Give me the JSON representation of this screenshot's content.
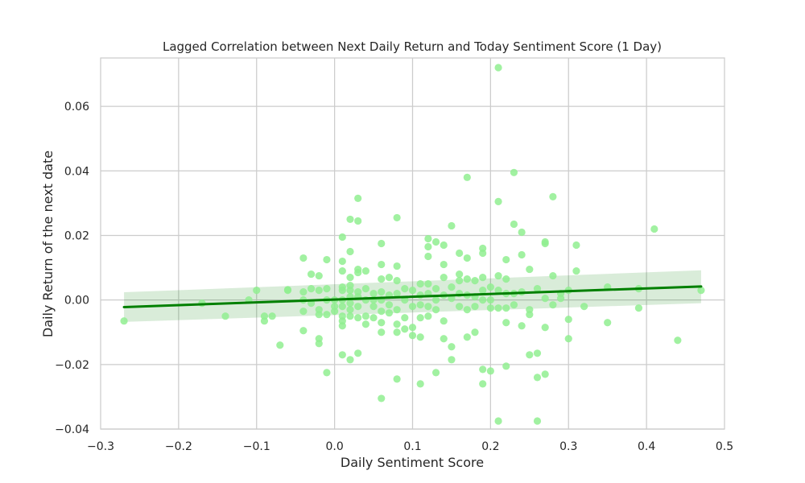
{
  "chart_data": {
    "type": "scatter",
    "title": "Lagged Correlation between Next Daily Return and Today Sentiment Score (1 Day)",
    "xlabel": "Daily Sentiment Score",
    "ylabel": "Daily Return of the next date",
    "xlim": [
      -0.3,
      0.5
    ],
    "ylim": [
      -0.04,
      0.075
    ],
    "x_ticks": [
      -0.3,
      -0.2,
      -0.1,
      0.0,
      0.1,
      0.2,
      0.3,
      0.4,
      0.5
    ],
    "x_tick_labels": [
      "−0.3",
      "−0.2",
      "−0.1",
      "0.0",
      "0.1",
      "0.2",
      "0.3",
      "0.4",
      "0.5"
    ],
    "y_ticks": [
      -0.04,
      -0.02,
      0.0,
      0.02,
      0.04,
      0.06
    ],
    "y_tick_labels": [
      "−0.04",
      "−0.02",
      "0.00",
      "0.02",
      "0.04",
      "0.06"
    ],
    "grid": true,
    "point_color": "#90ee90",
    "line_color": "#008000",
    "band_color": "#008000",
    "regression": {
      "x": [
        -0.27,
        0.47
      ],
      "y": [
        -0.0022,
        0.0042
      ],
      "ci_start": [
        -0.0068,
        0.0024
      ],
      "ci_end": [
        -0.001,
        0.0092
      ]
    },
    "points": [
      [
        -0.27,
        -0.0065
      ],
      [
        -0.17,
        -0.001
      ],
      [
        -0.14,
        -0.005
      ],
      [
        -0.11,
        0.0
      ],
      [
        -0.1,
        0.003
      ],
      [
        -0.09,
        -0.005
      ],
      [
        -0.09,
        -0.0065
      ],
      [
        -0.08,
        -0.005
      ],
      [
        -0.07,
        -0.014
      ],
      [
        -0.06,
        0.003
      ],
      [
        -0.06,
        0.0032
      ],
      [
        -0.04,
        0.013
      ],
      [
        -0.04,
        0.0025
      ],
      [
        -0.04,
        0.0
      ],
      [
        -0.04,
        -0.0035
      ],
      [
        -0.04,
        -0.0095
      ],
      [
        -0.03,
        0.008
      ],
      [
        -0.03,
        0.0035
      ],
      [
        -0.03,
        -0.001
      ],
      [
        -0.02,
        0.0075
      ],
      [
        -0.02,
        0.003
      ],
      [
        -0.02,
        -0.003
      ],
      [
        -0.02,
        -0.0045
      ],
      [
        -0.02,
        -0.012
      ],
      [
        -0.02,
        -0.0135
      ],
      [
        -0.01,
        0.0125
      ],
      [
        -0.01,
        0.0035
      ],
      [
        -0.01,
        0.0
      ],
      [
        -0.01,
        -0.0045
      ],
      [
        -0.01,
        -0.0225
      ],
      [
        0.0,
        0.0
      ],
      [
        0.0,
        -0.002
      ],
      [
        0.0,
        -0.0035
      ],
      [
        0.01,
        0.0195
      ],
      [
        0.01,
        0.012
      ],
      [
        0.01,
        0.009
      ],
      [
        0.01,
        0.004
      ],
      [
        0.01,
        0.003
      ],
      [
        0.01,
        0.0
      ],
      [
        0.01,
        -0.002
      ],
      [
        0.01,
        -0.005
      ],
      [
        0.01,
        -0.0065
      ],
      [
        0.01,
        -0.008
      ],
      [
        0.01,
        -0.017
      ],
      [
        0.02,
        0.025
      ],
      [
        0.02,
        0.015
      ],
      [
        0.02,
        0.007
      ],
      [
        0.02,
        0.0045
      ],
      [
        0.02,
        0.003
      ],
      [
        0.02,
        0.001
      ],
      [
        0.02,
        -0.001
      ],
      [
        0.02,
        -0.003
      ],
      [
        0.02,
        -0.005
      ],
      [
        0.02,
        -0.0185
      ],
      [
        0.03,
        0.0315
      ],
      [
        0.03,
        0.0245
      ],
      [
        0.03,
        0.0095
      ],
      [
        0.03,
        0.0085
      ],
      [
        0.03,
        0.0025
      ],
      [
        0.03,
        0.001
      ],
      [
        0.03,
        -0.002
      ],
      [
        0.03,
        -0.0055
      ],
      [
        0.03,
        -0.0165
      ],
      [
        0.04,
        0.009
      ],
      [
        0.04,
        0.0035
      ],
      [
        0.04,
        0.0
      ],
      [
        0.04,
        -0.005
      ],
      [
        0.04,
        -0.0075
      ],
      [
        0.05,
        0.002
      ],
      [
        0.05,
        0.0
      ],
      [
        0.05,
        -0.002
      ],
      [
        0.05,
        -0.0055
      ],
      [
        0.06,
        0.0175
      ],
      [
        0.06,
        0.011
      ],
      [
        0.06,
        0.0065
      ],
      [
        0.06,
        0.0025
      ],
      [
        0.06,
        0.0
      ],
      [
        0.06,
        -0.0035
      ],
      [
        0.06,
        -0.007
      ],
      [
        0.06,
        -0.01
      ],
      [
        0.06,
        -0.0305
      ],
      [
        0.07,
        0.007
      ],
      [
        0.07,
        0.0015
      ],
      [
        0.07,
        -0.0015
      ],
      [
        0.07,
        -0.004
      ],
      [
        0.08,
        0.0255
      ],
      [
        0.08,
        0.0105
      ],
      [
        0.08,
        0.006
      ],
      [
        0.08,
        0.002
      ],
      [
        0.08,
        -0.003
      ],
      [
        0.08,
        -0.0075
      ],
      [
        0.08,
        -0.01
      ],
      [
        0.08,
        -0.0245
      ],
      [
        0.09,
        0.0035
      ],
      [
        0.09,
        0.0
      ],
      [
        0.09,
        -0.0055
      ],
      [
        0.09,
        -0.009
      ],
      [
        0.1,
        0.003
      ],
      [
        0.1,
        -0.002
      ],
      [
        0.1,
        -0.0085
      ],
      [
        0.1,
        -0.011
      ],
      [
        0.11,
        0.005
      ],
      [
        0.11,
        0.0015
      ],
      [
        0.11,
        -0.0015
      ],
      [
        0.11,
        -0.0055
      ],
      [
        0.11,
        -0.0115
      ],
      [
        0.11,
        -0.026
      ],
      [
        0.12,
        0.019
      ],
      [
        0.12,
        0.0165
      ],
      [
        0.12,
        0.0135
      ],
      [
        0.12,
        0.005
      ],
      [
        0.12,
        0.002
      ],
      [
        0.12,
        -0.002
      ],
      [
        0.12,
        -0.005
      ],
      [
        0.13,
        0.018
      ],
      [
        0.13,
        0.0035
      ],
      [
        0.13,
        0.0
      ],
      [
        0.13,
        -0.003
      ],
      [
        0.13,
        -0.0225
      ],
      [
        0.14,
        0.017
      ],
      [
        0.14,
        0.011
      ],
      [
        0.14,
        0.007
      ],
      [
        0.14,
        0.0015
      ],
      [
        0.14,
        -0.0065
      ],
      [
        0.14,
        -0.012
      ],
      [
        0.15,
        0.023
      ],
      [
        0.15,
        0.004
      ],
      [
        0.15,
        0.0005
      ],
      [
        0.15,
        -0.0145
      ],
      [
        0.15,
        -0.0185
      ],
      [
        0.16,
        0.0145
      ],
      [
        0.16,
        0.008
      ],
      [
        0.16,
        0.006
      ],
      [
        0.16,
        0.002
      ],
      [
        0.16,
        -0.002
      ],
      [
        0.17,
        0.038
      ],
      [
        0.17,
        0.013
      ],
      [
        0.17,
        0.0065
      ],
      [
        0.17,
        0.0015
      ],
      [
        0.17,
        -0.003
      ],
      [
        0.17,
        -0.0115
      ],
      [
        0.18,
        0.006
      ],
      [
        0.18,
        0.001
      ],
      [
        0.18,
        -0.002
      ],
      [
        0.18,
        -0.01
      ],
      [
        0.19,
        0.016
      ],
      [
        0.19,
        0.0145
      ],
      [
        0.19,
        0.007
      ],
      [
        0.19,
        0.003
      ],
      [
        0.19,
        0.0
      ],
      [
        0.19,
        -0.0215
      ],
      [
        0.19,
        -0.026
      ],
      [
        0.2,
        0.004
      ],
      [
        0.2,
        0.0
      ],
      [
        0.2,
        -0.0025
      ],
      [
        0.2,
        -0.022
      ],
      [
        0.21,
        0.072
      ],
      [
        0.21,
        0.0305
      ],
      [
        0.21,
        0.0075
      ],
      [
        0.21,
        0.003
      ],
      [
        0.21,
        -0.0025
      ],
      [
        0.21,
        -0.0375
      ],
      [
        0.22,
        0.0125
      ],
      [
        0.22,
        0.0065
      ],
      [
        0.22,
        0.002
      ],
      [
        0.22,
        -0.0025
      ],
      [
        0.22,
        -0.007
      ],
      [
        0.22,
        -0.0205
      ],
      [
        0.23,
        0.0395
      ],
      [
        0.23,
        0.0235
      ],
      [
        0.23,
        0.002
      ],
      [
        0.23,
        -0.0015
      ],
      [
        0.24,
        0.021
      ],
      [
        0.24,
        0.014
      ],
      [
        0.24,
        0.0025
      ],
      [
        0.24,
        -0.008
      ],
      [
        0.25,
        0.0095
      ],
      [
        0.25,
        -0.003
      ],
      [
        0.25,
        -0.0045
      ],
      [
        0.25,
        -0.017
      ],
      [
        0.26,
        0.0035
      ],
      [
        0.26,
        -0.0165
      ],
      [
        0.26,
        -0.024
      ],
      [
        0.26,
        -0.0375
      ],
      [
        0.27,
        0.018
      ],
      [
        0.27,
        0.0175
      ],
      [
        0.27,
        0.0005
      ],
      [
        0.27,
        -0.0085
      ],
      [
        0.27,
        -0.023
      ],
      [
        0.28,
        0.032
      ],
      [
        0.28,
        0.0075
      ],
      [
        0.28,
        -0.0015
      ],
      [
        0.29,
        0.002
      ],
      [
        0.29,
        0.0005
      ],
      [
        0.3,
        0.003
      ],
      [
        0.3,
        -0.006
      ],
      [
        0.3,
        -0.012
      ],
      [
        0.31,
        0.017
      ],
      [
        0.31,
        0.009
      ],
      [
        0.32,
        -0.002
      ],
      [
        0.35,
        0.004
      ],
      [
        0.35,
        -0.007
      ],
      [
        0.39,
        0.0035
      ],
      [
        0.39,
        -0.0025
      ],
      [
        0.41,
        0.022
      ],
      [
        0.44,
        -0.0125
      ],
      [
        0.47,
        0.003
      ]
    ]
  }
}
